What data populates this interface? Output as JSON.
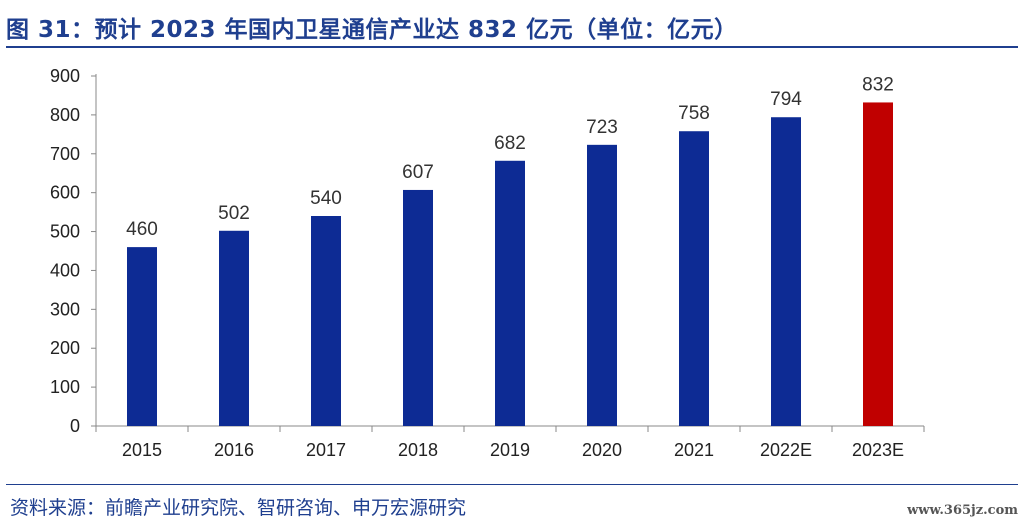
{
  "title": "图 31：预计 2023 年国内卫星通信产业达 832 亿元（单位：亿元）",
  "source": "资料来源：前瞻产业研究院、智研咨询、申万宏源研究",
  "watermark": "www.365jz.com",
  "colors": {
    "title": "#1f3f8f",
    "bar_actual": "#0d2b94",
    "bar_forecast": "#c00000",
    "axis": "#888888"
  },
  "chart_data": {
    "type": "bar",
    "title": "图 31：预计 2023 年国内卫星通信产业达 832 亿元（单位：亿元）",
    "xlabel": "",
    "ylabel": "",
    "categories": [
      "2015",
      "2016",
      "2017",
      "2018",
      "2019",
      "2020",
      "2021",
      "2022E",
      "2023E"
    ],
    "values": [
      460,
      502,
      540,
      607,
      682,
      723,
      758,
      794,
      832
    ],
    "highlight_index": 8,
    "ylim": [
      0,
      900
    ],
    "yticks": [
      0,
      100,
      200,
      300,
      400,
      500,
      600,
      700,
      800,
      900
    ],
    "grid": false,
    "legend": "none"
  }
}
